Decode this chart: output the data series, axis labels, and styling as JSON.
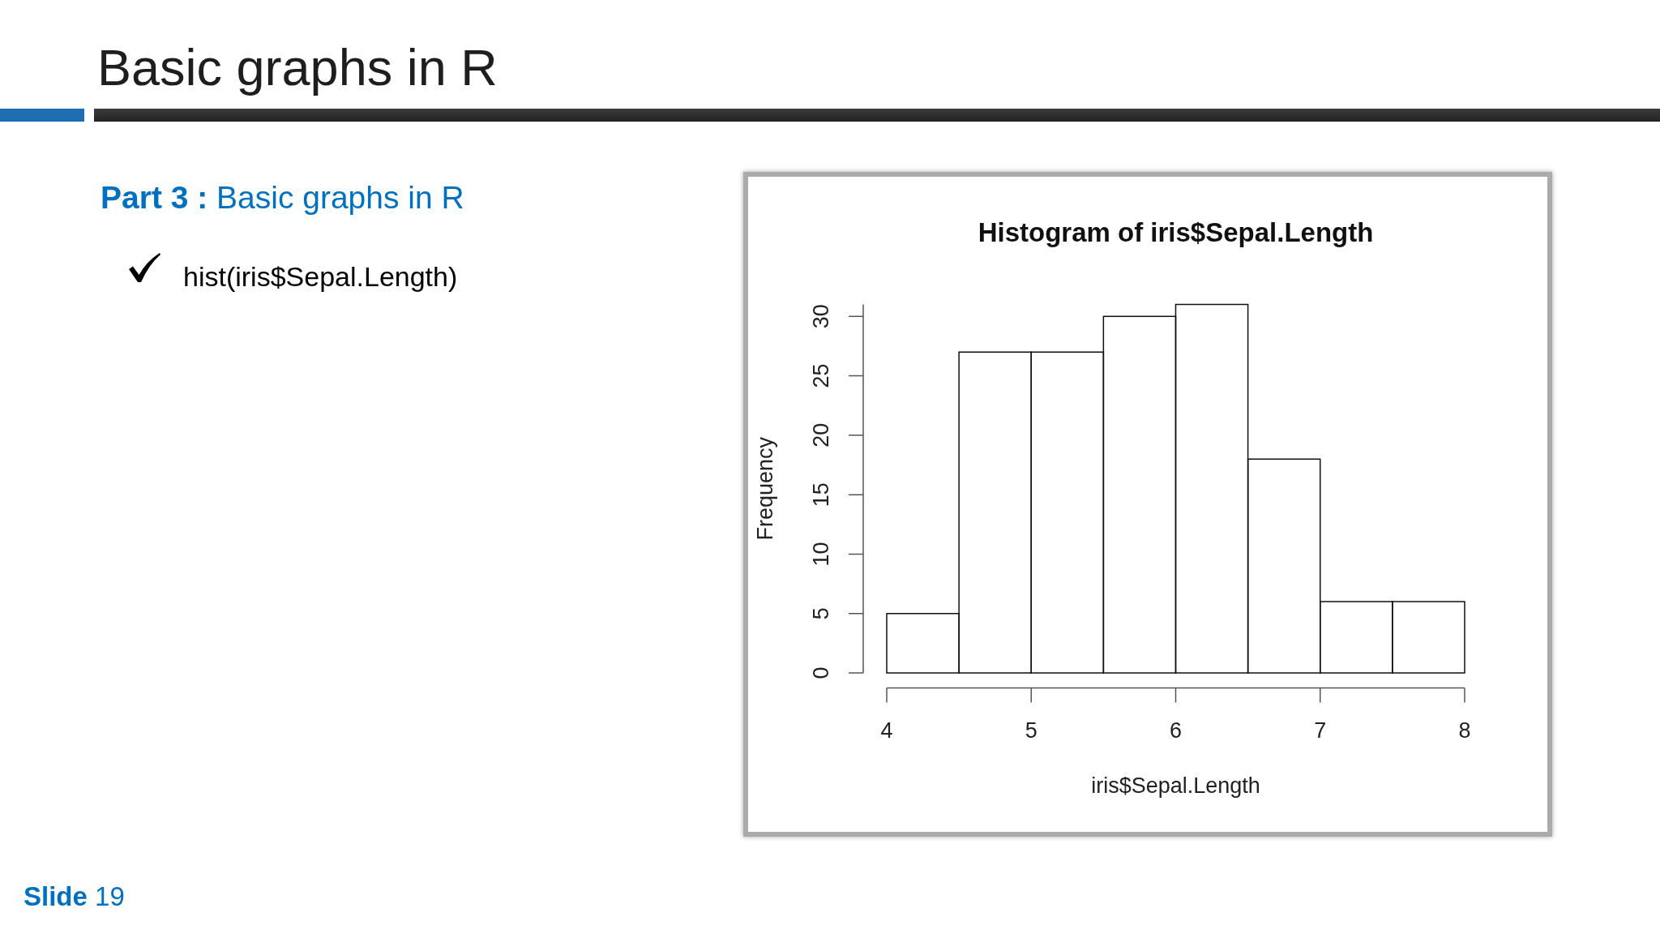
{
  "chart_data": {
    "type": "histogram",
    "title": "Histogram of iris$Sepal.Length",
    "xlabel": "iris$Sepal.Length",
    "ylabel": "Frequency",
    "bins": [
      4,
      4.5,
      5,
      5.5,
      6,
      6.5,
      7,
      7.5,
      8
    ],
    "values": [
      5,
      27,
      27,
      30,
      31,
      18,
      6,
      6
    ],
    "color": "#111111",
    "xlim": [
      4,
      8
    ],
    "ylim": [
      0,
      31
    ],
    "xticks": [
      4,
      5,
      6,
      7,
      8
    ],
    "yticks": [
      0,
      5,
      10,
      15,
      20,
      25,
      30
    ],
    "annotations": [
      "Basic graphs in R",
      "Part 3 : Basic graphs in R",
      "hist(iris$Sepal.Length)",
      "Slide 19"
    ]
  }
}
